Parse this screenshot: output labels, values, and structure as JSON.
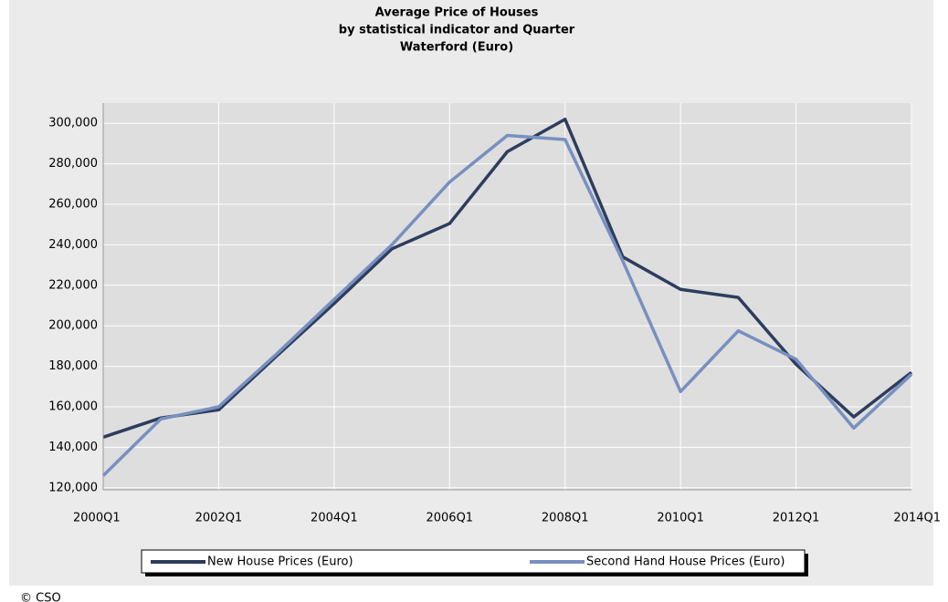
{
  "chart_data": {
    "type": "line",
    "title": "Average Price of Houses",
    "subtitle": [
      "by statistical indicator and Quarter",
      "Waterford (Euro)"
    ],
    "categories": [
      "2000Q1",
      null,
      "2002Q1",
      null,
      "2004Q1",
      null,
      "2006Q1",
      null,
      "2008Q1",
      null,
      "2010Q1",
      null,
      "2012Q1",
      null,
      "2014Q1"
    ],
    "series": [
      {
        "name": "New House Prices (Euro)",
        "color": "#2e3d5e",
        "values": [
          145000,
          154500,
          158500,
          185000,
          211000,
          238000,
          250500,
          286000,
          302000,
          234000,
          218000,
          214000,
          181000,
          155000,
          177000
        ]
      },
      {
        "name": "Second Hand House Prices (Euro)",
        "color": "#7890c0",
        "values": [
          126000,
          154000,
          160000,
          186000,
          213000,
          240000,
          271000,
          294000,
          292000,
          232000,
          167500,
          197500,
          183500,
          149500,
          176000
        ]
      }
    ],
    "ylim": [
      119000,
      310000
    ],
    "yticks": [
      {
        "value": 120000,
        "label": "120,000"
      },
      {
        "value": 140000,
        "label": "140,000"
      },
      {
        "value": 160000,
        "label": "160,000"
      },
      {
        "value": 180000,
        "label": "180,000"
      },
      {
        "value": 200000,
        "label": "200,000"
      },
      {
        "value": 220000,
        "label": "220,000"
      },
      {
        "value": 240000,
        "label": "240,000"
      },
      {
        "value": 260000,
        "label": "260,000"
      },
      {
        "value": 280000,
        "label": "280,000"
      },
      {
        "value": 300000,
        "label": "300,000"
      }
    ],
    "grid": true,
    "legend": "bottom",
    "footer": "© CSO"
  }
}
